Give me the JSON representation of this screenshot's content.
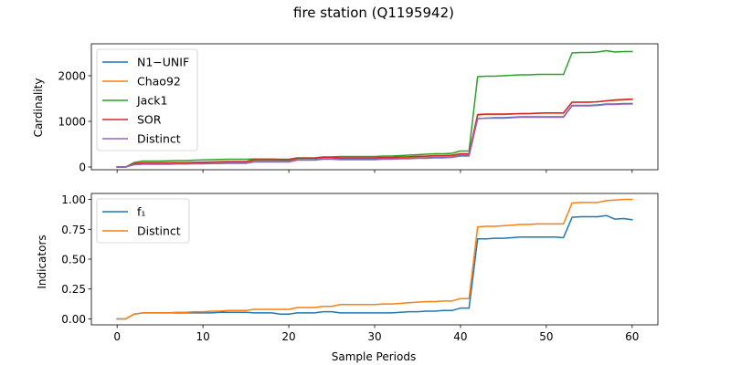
{
  "chart_data": [
    {
      "type": "line",
      "title": "fire station (Q1195942)",
      "xlabel": "",
      "ylabel": "Cardinality",
      "xlim": [
        -3,
        63
      ],
      "ylim": [
        -60,
        2700
      ],
      "xticks": [
        0,
        10,
        20,
        30,
        40,
        50,
        60
      ],
      "show_xtick_labels": false,
      "yticks": [
        0,
        1000,
        2000
      ],
      "grid": false,
      "legend_position": "upper-left",
      "x": [
        0,
        1,
        2,
        3,
        4,
        5,
        6,
        7,
        8,
        9,
        10,
        11,
        12,
        13,
        14,
        15,
        16,
        17,
        18,
        19,
        20,
        21,
        22,
        23,
        24,
        25,
        26,
        27,
        28,
        29,
        30,
        31,
        32,
        33,
        34,
        35,
        36,
        37,
        38,
        39,
        40,
        41,
        42,
        43,
        44,
        45,
        46,
        47,
        48,
        49,
        50,
        51,
        52,
        53,
        54,
        55,
        56,
        57,
        58,
        59,
        60
      ],
      "series": [
        {
          "name": "N1−UNIF",
          "color": "#1f77b4",
          "values": [
            0,
            0,
            60,
            80,
            80,
            80,
            80,
            85,
            85,
            90,
            90,
            95,
            95,
            100,
            100,
            100,
            140,
            140,
            140,
            140,
            140,
            180,
            180,
            180,
            200,
            200,
            180,
            180,
            180,
            180,
            180,
            190,
            190,
            200,
            200,
            210,
            210,
            220,
            220,
            230,
            260,
            260,
            1060,
            1070,
            1080,
            1080,
            1090,
            1100,
            1100,
            1100,
            1100,
            1100,
            1100,
            1350,
            1350,
            1350,
            1360,
            1380,
            1380,
            1390,
            1390
          ]
        },
        {
          "name": "Chao92",
          "color": "#ff7f0e",
          "values": [
            0,
            0,
            70,
            90,
            90,
            90,
            90,
            95,
            95,
            100,
            100,
            105,
            105,
            110,
            110,
            110,
            150,
            150,
            150,
            150,
            150,
            190,
            190,
            190,
            210,
            210,
            195,
            195,
            195,
            195,
            195,
            205,
            205,
            215,
            215,
            225,
            225,
            235,
            235,
            245,
            280,
            280,
            1140,
            1150,
            1150,
            1150,
            1160,
            1170,
            1170,
            1180,
            1180,
            1180,
            1180,
            1420,
            1420,
            1420,
            1430,
            1450,
            1460,
            1470,
            1480
          ]
        },
        {
          "name": "Jack1",
          "color": "#2ca02c",
          "values": [
            0,
            0,
            100,
            130,
            130,
            130,
            135,
            140,
            140,
            150,
            155,
            160,
            165,
            170,
            170,
            170,
            175,
            175,
            175,
            170,
            170,
            200,
            200,
            200,
            220,
            220,
            230,
            230,
            230,
            230,
            230,
            240,
            240,
            250,
            260,
            270,
            280,
            290,
            290,
            300,
            350,
            350,
            1980,
            1990,
            1990,
            2000,
            2010,
            2020,
            2020,
            2030,
            2030,
            2030,
            2030,
            2500,
            2510,
            2510,
            2520,
            2550,
            2520,
            2530,
            2530
          ]
        },
        {
          "name": "SOR",
          "color": "#d62728",
          "values": [
            0,
            0,
            75,
            90,
            90,
            90,
            92,
            95,
            95,
            100,
            105,
            110,
            115,
            120,
            120,
            120,
            160,
            160,
            160,
            155,
            155,
            195,
            195,
            195,
            215,
            215,
            200,
            200,
            200,
            200,
            200,
            210,
            210,
            220,
            225,
            235,
            240,
            250,
            250,
            260,
            290,
            290,
            1150,
            1160,
            1160,
            1160,
            1165,
            1170,
            1170,
            1180,
            1185,
            1185,
            1185,
            1420,
            1420,
            1420,
            1430,
            1450,
            1470,
            1480,
            1490
          ]
        },
        {
          "name": "Distinct",
          "color": "#9467bd",
          "values": [
            0,
            0,
            50,
            60,
            60,
            60,
            60,
            65,
            65,
            70,
            70,
            75,
            75,
            80,
            80,
            80,
            110,
            110,
            110,
            110,
            110,
            150,
            150,
            150,
            170,
            170,
            160,
            160,
            160,
            160,
            160,
            170,
            170,
            180,
            180,
            190,
            190,
            200,
            200,
            210,
            240,
            240,
            1060,
            1070,
            1070,
            1070,
            1080,
            1090,
            1090,
            1090,
            1090,
            1090,
            1090,
            1340,
            1340,
            1340,
            1350,
            1370,
            1370,
            1380,
            1380
          ]
        }
      ]
    },
    {
      "type": "line",
      "title": "",
      "xlabel": "Sample Periods",
      "ylabel": "Indicators",
      "xlim": [
        -3,
        63
      ],
      "ylim": [
        -0.05,
        1.05
      ],
      "xticks": [
        0,
        10,
        20,
        30,
        40,
        50,
        60
      ],
      "show_xtick_labels": true,
      "yticks": [
        0.0,
        0.25,
        0.5,
        0.75,
        1.0
      ],
      "ytick_labels": [
        "0.00",
        "0.25",
        "0.50",
        "0.75",
        "1.00"
      ],
      "grid": false,
      "legend_position": "upper-left",
      "x": [
        0,
        1,
        2,
        3,
        4,
        5,
        6,
        7,
        8,
        9,
        10,
        11,
        12,
        13,
        14,
        15,
        16,
        17,
        18,
        19,
        20,
        21,
        22,
        23,
        24,
        25,
        26,
        27,
        28,
        29,
        30,
        31,
        32,
        33,
        34,
        35,
        36,
        37,
        38,
        39,
        40,
        41,
        42,
        43,
        44,
        45,
        46,
        47,
        48,
        49,
        50,
        51,
        52,
        53,
        54,
        55,
        56,
        57,
        58,
        59,
        60
      ],
      "series": [
        {
          "name": "f₁",
          "color": "#1f77b4",
          "values": [
            0,
            0,
            0.04,
            0.05,
            0.05,
            0.05,
            0.05,
            0.05,
            0.05,
            0.05,
            0.05,
            0.05,
            0.055,
            0.055,
            0.055,
            0.055,
            0.05,
            0.05,
            0.05,
            0.04,
            0.04,
            0.05,
            0.05,
            0.05,
            0.06,
            0.06,
            0.05,
            0.05,
            0.05,
            0.05,
            0.05,
            0.05,
            0.05,
            0.055,
            0.06,
            0.06,
            0.065,
            0.065,
            0.07,
            0.07,
            0.09,
            0.09,
            0.67,
            0.67,
            0.675,
            0.675,
            0.68,
            0.685,
            0.685,
            0.685,
            0.685,
            0.685,
            0.68,
            0.85,
            0.855,
            0.855,
            0.855,
            0.865,
            0.835,
            0.84,
            0.83
          ]
        },
        {
          "name": "Distinct",
          "color": "#ff7f0e",
          "values": [
            0,
            0,
            0.04,
            0.05,
            0.05,
            0.05,
            0.05,
            0.055,
            0.055,
            0.06,
            0.06,
            0.065,
            0.065,
            0.07,
            0.07,
            0.07,
            0.08,
            0.08,
            0.08,
            0.08,
            0.08,
            0.095,
            0.095,
            0.095,
            0.105,
            0.105,
            0.12,
            0.12,
            0.12,
            0.12,
            0.12,
            0.125,
            0.125,
            0.13,
            0.135,
            0.14,
            0.145,
            0.145,
            0.15,
            0.15,
            0.17,
            0.17,
            0.77,
            0.775,
            0.775,
            0.78,
            0.785,
            0.79,
            0.79,
            0.795,
            0.795,
            0.795,
            0.795,
            0.97,
            0.975,
            0.975,
            0.975,
            0.99,
            0.995,
            1.0,
            1.0
          ]
        }
      ]
    }
  ]
}
